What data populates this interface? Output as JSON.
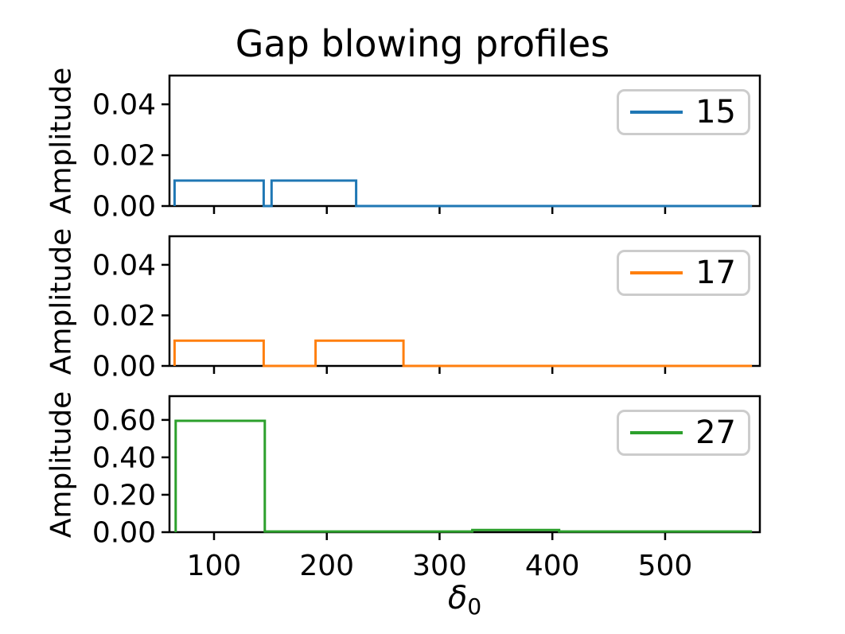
{
  "title": "Gap blowing profiles",
  "xlabel": {
    "base": "δ",
    "sub": "0"
  },
  "style": {
    "background": "#ffffff",
    "spine_color": "#000000",
    "legend_border_color": "#cccccc",
    "text_color": "#000000"
  },
  "chart_data": [
    {
      "type": "line",
      "style": "step",
      "series_label": "15",
      "color": "#1f77b4",
      "ylabel": "Amplitude",
      "grid": false,
      "legend_loc": "upper right",
      "xlim": [
        60.5,
        584
      ],
      "ylim": [
        0,
        0.0513
      ],
      "xticks": [
        100,
        200,
        300,
        400,
        500
      ],
      "xtick_labels": [
        "100",
        "200",
        "300",
        "400",
        "500"
      ],
      "show_xtick_labels": false,
      "yticks": [
        0,
        0.02,
        0.04
      ],
      "ytick_labels": [
        "0.00",
        "0.02",
        "0.04"
      ],
      "points": [
        [
          65,
          0
        ],
        [
          65,
          0.01
        ],
        [
          144,
          0.01
        ],
        [
          144,
          0
        ],
        [
          151,
          0
        ],
        [
          151,
          0.01
        ],
        [
          226,
          0.01
        ],
        [
          226,
          0
        ],
        [
          577,
          0
        ]
      ]
    },
    {
      "type": "line",
      "style": "step",
      "series_label": "17",
      "color": "#ff7f0e",
      "ylabel": "Amplitude",
      "grid": false,
      "legend_loc": "upper right",
      "xlim": [
        60.5,
        584
      ],
      "ylim": [
        0,
        0.0513
      ],
      "xticks": [
        100,
        200,
        300,
        400,
        500
      ],
      "xtick_labels": [
        "100",
        "200",
        "300",
        "400",
        "500"
      ],
      "show_xtick_labels": false,
      "yticks": [
        0,
        0.02,
        0.04
      ],
      "ytick_labels": [
        "0.00",
        "0.02",
        "0.04"
      ],
      "points": [
        [
          65,
          0
        ],
        [
          65,
          0.01
        ],
        [
          144,
          0.01
        ],
        [
          144,
          0
        ],
        [
          190,
          0
        ],
        [
          190,
          0.01
        ],
        [
          268,
          0.01
        ],
        [
          268,
          0
        ],
        [
          577,
          0
        ]
      ]
    },
    {
      "type": "line",
      "style": "step",
      "series_label": "27",
      "color": "#2ca02c",
      "ylabel": "Amplitude",
      "grid": false,
      "legend_loc": "upper right",
      "xlim": [
        60.5,
        584
      ],
      "ylim": [
        0,
        0.727
      ],
      "xticks": [
        100,
        200,
        300,
        400,
        500
      ],
      "xtick_labels": [
        "100",
        "200",
        "300",
        "400",
        "500"
      ],
      "show_xtick_labels": true,
      "yticks": [
        0,
        0.2,
        0.4,
        0.6
      ],
      "ytick_labels": [
        "0.00",
        "0.20",
        "0.40",
        "0.60"
      ],
      "points": [
        [
          66,
          0
        ],
        [
          66,
          0.595
        ],
        [
          145,
          0.595
        ],
        [
          145,
          0.004
        ],
        [
          329,
          0.004
        ],
        [
          329,
          0.012
        ],
        [
          406,
          0.012
        ],
        [
          406,
          0.004
        ],
        [
          577,
          0.004
        ]
      ]
    }
  ]
}
